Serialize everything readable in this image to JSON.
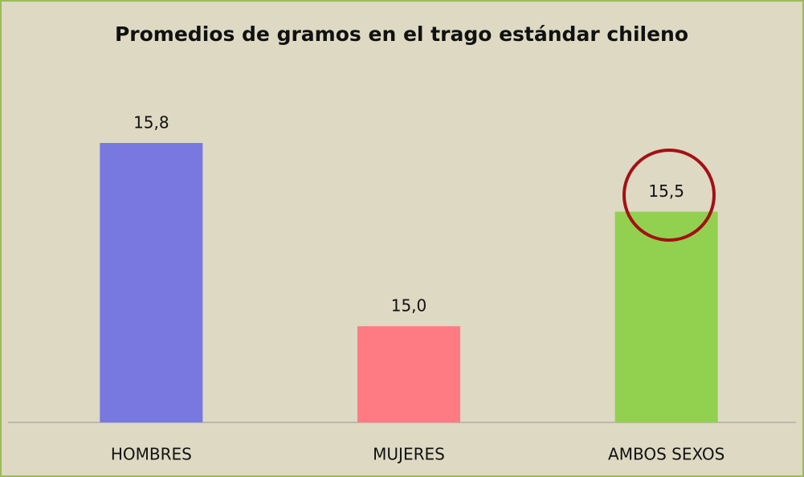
{
  "chart_data": {
    "type": "bar",
    "title": "Promedios de gramos en el trago estándar chileno",
    "categories": [
      "HOMBRES",
      "MUJERES",
      "AMBOS SEXOS"
    ],
    "values": [
      15.8,
      15.0,
      15.5
    ],
    "value_labels": [
      "15,8",
      "15,0",
      "15,5"
    ],
    "colors": [
      "#7878e0",
      "#ff7b84",
      "#92d050"
    ],
    "ylim": [
      14.58,
      16.0
    ]
  }
}
